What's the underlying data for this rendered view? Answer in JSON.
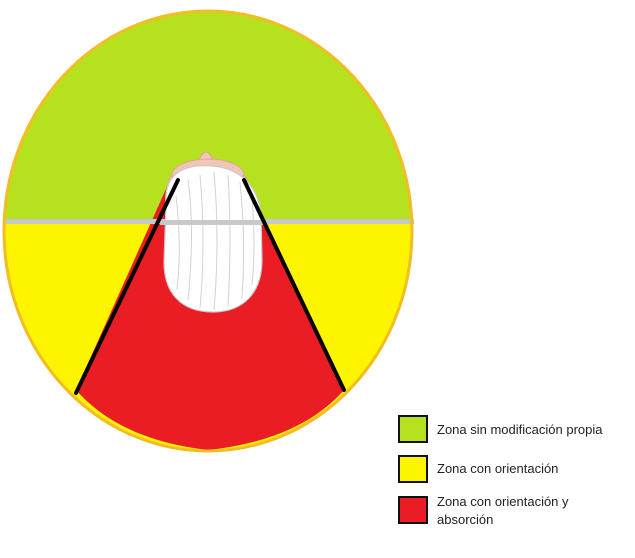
{
  "legend": [
    {
      "label": "Zona sin modificación propia",
      "color": "#b5e11f"
    },
    {
      "label": "Zona con orientación",
      "color": "#fdf500"
    },
    {
      "label": "Zona con orientación y absorción",
      "color": "#ea1c24"
    }
  ],
  "colors": {
    "outline": "#f2bd23",
    "divider": "#c8c8c8",
    "boundary_lines": "#000000",
    "head_hair": "#ffffff",
    "skin": "#f2c6b6"
  }
}
